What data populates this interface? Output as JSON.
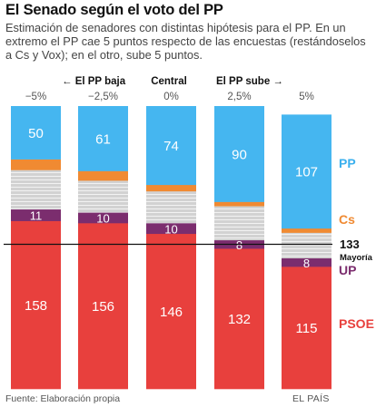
{
  "header": {
    "title": "El Senado según el voto del PP",
    "subtitle": "Estimación de senadores con distintas hipótesis para el PP. En un extremo el PP cae 5 puntos respecto de las encuestas (restándoselos a Cs y Vox); en el otro, sube 5 puntos."
  },
  "footer": {
    "source": "Fuente: Elaboración propia",
    "brand": "EL PAÍS"
  },
  "annotations": {
    "pp_baja": "← El PP baja",
    "central": "Central",
    "pp_sube": "El PP sube →",
    "majority_value": "133",
    "majority_label": "Mayoría"
  },
  "chart_data": {
    "type": "stacked-bar",
    "title": "El Senado según el voto del PP",
    "categories": [
      "−5%",
      "−2,5%",
      "0%",
      "2,5%",
      "5%"
    ],
    "total": 266,
    "majority": 133,
    "series": [
      {
        "name": "PSOE",
        "color": "#e8403d",
        "label_color": "#e8403d",
        "values": [
          158,
          156,
          146,
          132,
          115
        ],
        "show_values": true
      },
      {
        "name": "UP",
        "color": "#7b2d6e",
        "label_color": "#7b2d6e",
        "values": [
          11,
          10,
          10,
          8,
          8
        ],
        "show_values": true
      },
      {
        "name": "",
        "color": "#cfcfcf",
        "label_color": "",
        "values": [
          37,
          30,
          30,
          32,
          24
        ],
        "show_values": false
      },
      {
        "name": "Cs",
        "color": "#f08a32",
        "label_color": "#f08a32",
        "values": [
          10,
          9,
          6,
          4,
          4
        ],
        "show_values": false
      },
      {
        "name": "PP",
        "color": "#45b6f0",
        "label_color": "#3bb0ee",
        "values": [
          50,
          61,
          74,
          90,
          107
        ],
        "show_values": true
      }
    ],
    "xlabel": "",
    "ylabel": "",
    "legend": "right",
    "grid": false
  }
}
